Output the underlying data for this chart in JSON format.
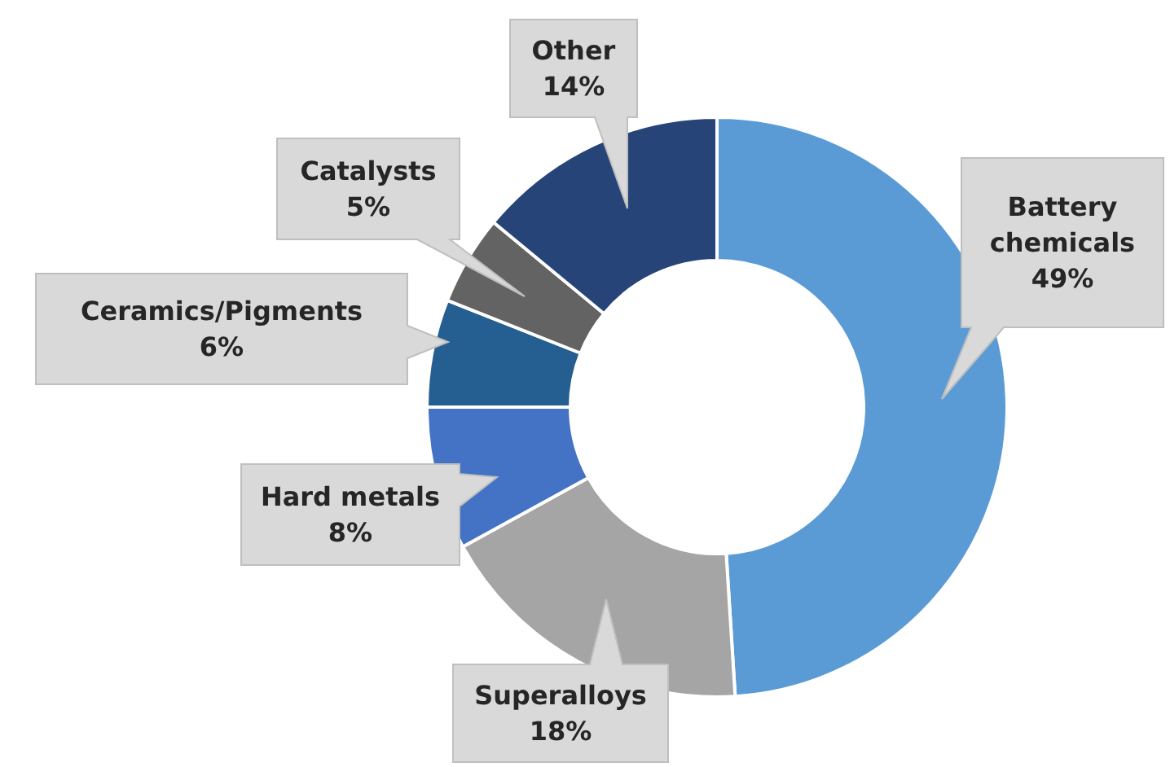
{
  "chart_data": {
    "type": "donut",
    "categories": [
      "Battery chemicals",
      "Superalloys",
      "Hard metals",
      "Ceramics/Pigments",
      "Catalysts",
      "Other"
    ],
    "values": [
      49,
      18,
      8,
      6,
      5,
      14
    ],
    "value_labels": [
      "49%",
      "18%",
      "8%",
      "6%",
      "5%",
      "14%"
    ],
    "colors": [
      "#5b9bd5",
      "#a5a5a5",
      "#4472c4",
      "#255e91",
      "#636363",
      "#264478"
    ]
  }
}
